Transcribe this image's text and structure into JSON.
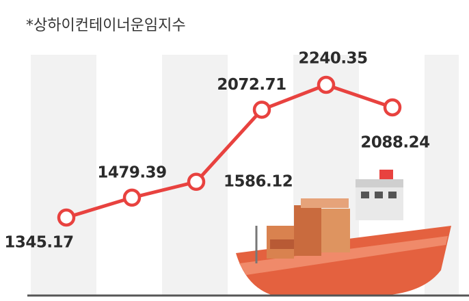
{
  "chart_data": {
    "type": "line",
    "title": "*상하이컨테이너운임지수",
    "categories": [
      null,
      null,
      null,
      null,
      null,
      null
    ],
    "series": [
      {
        "color": "#e8423f",
        "values": [
          1345.17,
          1479.39,
          1586.12,
          2072.71,
          2240.35,
          2088.24
        ]
      }
    ]
  }
}
